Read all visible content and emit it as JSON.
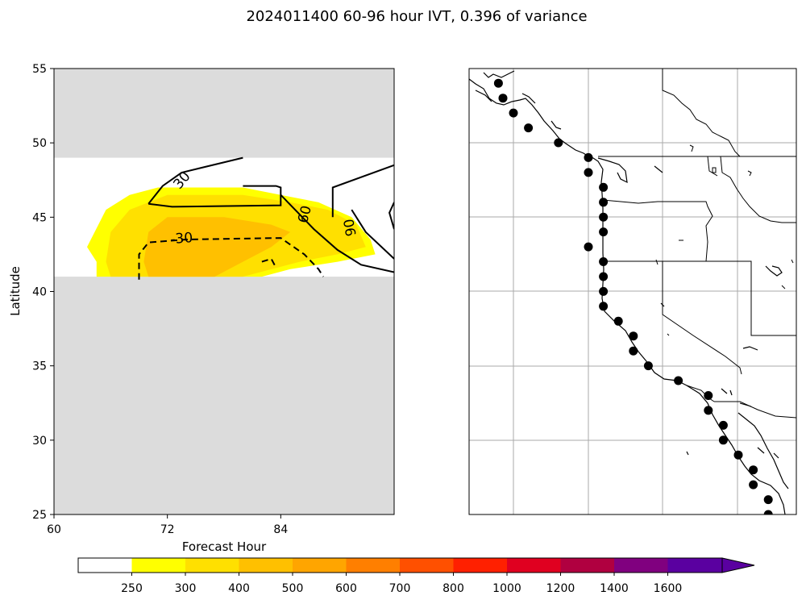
{
  "title": "2024011400 60-96 hour IVT, 0.396 of variance",
  "chart_data": [
    {
      "type": "contour",
      "name": "hovmoller-panel",
      "xlabel": "Forecast Hour",
      "ylabel": "Latitude",
      "xlim": [
        60,
        96
      ],
      "ylim": [
        25,
        55
      ],
      "xticks": [
        "60",
        "72",
        "84"
      ],
      "yticks": [
        "25",
        "30",
        "35",
        "40",
        "45",
        "50",
        "55"
      ],
      "masked_lat_ranges": [
        [
          25,
          41
        ],
        [
          49,
          55
        ]
      ],
      "filled_contours": [
        {
          "level": 250,
          "color": "#ffff00",
          "polygon": [
            [
              63.5,
              43
            ],
            [
              65.5,
              45.5
            ],
            [
              68,
              46.5
            ],
            [
              71,
              47
            ],
            [
              80,
              47
            ],
            [
              84,
              46.5
            ],
            [
              88,
              46
            ],
            [
              91.5,
              45
            ],
            [
              93.5,
              43.5
            ],
            [
              94,
              42.5
            ],
            [
              90,
              42
            ],
            [
              85,
              41.5
            ],
            [
              82,
              41
            ],
            [
              64.5,
              41
            ],
            [
              64.5,
              42
            ]
          ]
        },
        {
          "level": 300,
          "color": "#ffe000",
          "polygon": [
            [
              65.5,
              42
            ],
            [
              66,
              44
            ],
            [
              68,
              45.5
            ],
            [
              72,
              46.5
            ],
            [
              80,
              46.5
            ],
            [
              85,
              46
            ],
            [
              89,
              45.5
            ],
            [
              92,
              44.5
            ],
            [
              93,
              43
            ],
            [
              90,
              42.5
            ],
            [
              86,
              42
            ],
            [
              80,
              41
            ],
            [
              66,
              41
            ]
          ]
        },
        {
          "level": 400,
          "color": "#ffc000",
          "polygon": [
            [
              69.5,
              42
            ],
            [
              70,
              44
            ],
            [
              72,
              45
            ],
            [
              78,
              45
            ],
            [
              83,
              44.5
            ],
            [
              85,
              44
            ],
            [
              83,
              43
            ],
            [
              80,
              42
            ],
            [
              77,
              41
            ],
            [
              70,
              41
            ]
          ]
        }
      ],
      "line_contours": [
        {
          "level": 30,
          "label": "30",
          "style": "solid",
          "points": [
            [
              70,
              45.9
            ],
            [
              71.5,
              47.1
            ],
            [
              73.5,
              48
            ],
            [
              80,
              49
            ]
          ]
        },
        {
          "level": 30,
          "label": "30",
          "style": "solid",
          "points": [
            [
              70,
              45.9
            ],
            [
              72.5,
              45.7
            ],
            [
              84,
              45.8
            ],
            [
              84,
              47
            ],
            [
              83.5,
              47.1
            ],
            [
              80,
              47.1
            ]
          ]
        },
        {
          "level": 60,
          "label": "60",
          "style": "solid",
          "points": [
            [
              84,
              46.5
            ],
            [
              87.5,
              44.2
            ],
            [
              90,
              42.8
            ],
            [
              92.5,
              41.8
            ],
            [
              96,
              41.3
            ]
          ]
        },
        {
          "level": 90,
          "label": "90",
          "style": "solid",
          "points": [
            [
              89.5,
              45
            ],
            [
              89.5,
              47
            ],
            [
              96,
              48.5
            ]
          ]
        },
        {
          "level": 90,
          "label": "90",
          "style": "solid",
          "points": [
            [
              91.5,
              45.5
            ],
            [
              93,
              44
            ],
            [
              96,
              42.2
            ]
          ]
        },
        {
          "level": 90,
          "label": "90",
          "style": "solid",
          "points": [
            [
              96,
              46
            ],
            [
              95.5,
              45.3
            ],
            [
              96,
              44.2
            ]
          ]
        },
        {
          "level": -30,
          "label": "-30",
          "style": "dashed",
          "points": [
            [
              69,
              40.8
            ],
            [
              69,
              42.5
            ],
            [
              70,
              43.3
            ],
            [
              74,
              43.5
            ],
            [
              84,
              43.6
            ],
            [
              86.5,
              42.5
            ],
            [
              88,
              41.5
            ],
            [
              88.5,
              41
            ]
          ]
        },
        {
          "level": -30,
          "label": "",
          "style": "dashed",
          "points": [
            [
              82,
              42
            ],
            [
              83,
              42.2
            ],
            [
              83.5,
              41.6
            ]
          ]
        }
      ]
    },
    {
      "type": "map",
      "name": "west-coast-map",
      "region": "North American west coast",
      "points_lat": [
        54,
        53,
        52,
        51,
        50,
        49,
        48,
        47,
        46,
        45,
        44,
        43,
        42,
        41,
        40,
        39,
        38,
        37,
        36,
        35,
        34,
        33,
        32,
        31,
        30,
        29,
        28,
        27,
        26,
        25
      ],
      "points_lon": [
        -131,
        -130.7,
        -130,
        -129,
        -127,
        -125,
        -125,
        -124,
        -124,
        -124,
        -124,
        -125,
        -124,
        -124,
        -124,
        -124,
        -123,
        -122,
        -122,
        -121,
        -119,
        -117,
        -117,
        -116,
        -116,
        -115,
        -114,
        -114,
        -113,
        -113
      ]
    }
  ],
  "colorbar": {
    "levels": [
      "250",
      "300",
      "400",
      "500",
      "600",
      "700",
      "800",
      "1000",
      "1200",
      "1400",
      "1600"
    ],
    "colors": [
      "#ffffff",
      "#ffff00",
      "#ffe000",
      "#ffc000",
      "#ffa500",
      "#ff7f00",
      "#ff5000",
      "#ff2000",
      "#e00020",
      "#b00040",
      "#80007f",
      "#5a00a0"
    ]
  }
}
